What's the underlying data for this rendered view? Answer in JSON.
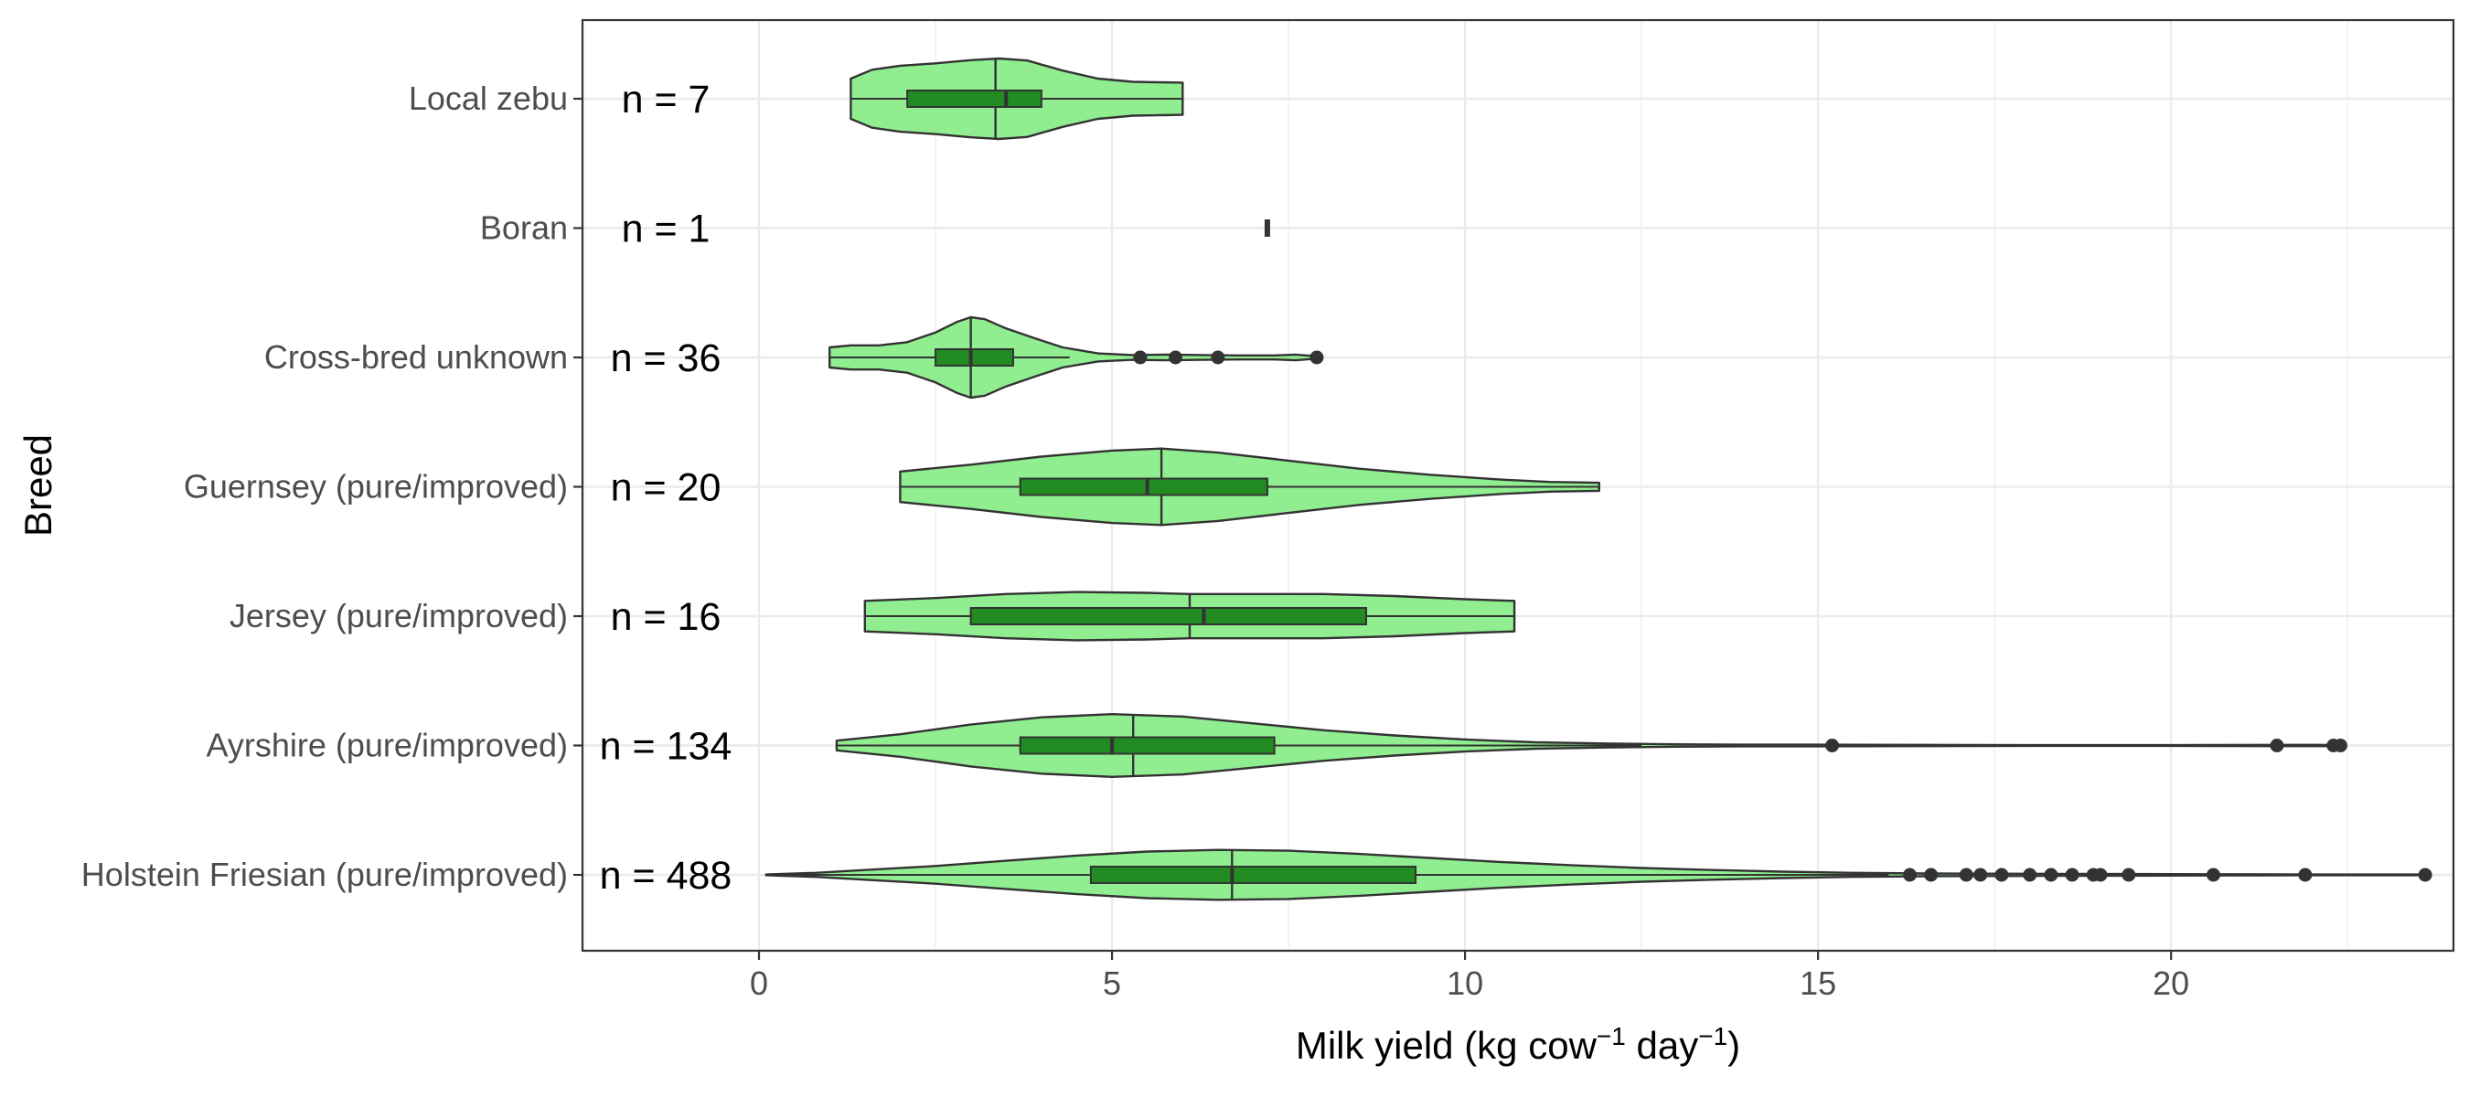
{
  "chart_data": {
    "type": "violin",
    "orientation": "horizontal",
    "xlabel_main": "Milk yield (kg cow",
    "xlabel_sup1": "−1",
    "xlabel_mid": " day",
    "xlabel_sup2": "−1",
    "xlabel_end": ")",
    "ylabel": "Breed",
    "xlim": [
      -2.5,
      24.0
    ],
    "xticks": [
      0,
      5,
      10,
      15,
      20
    ],
    "xtick_labels": [
      "0",
      "5",
      "10",
      "15",
      "20"
    ],
    "grid": true,
    "colors": {
      "violin_fill": "#90ee90",
      "box_fill": "#228b22",
      "stroke": "#333333",
      "grid": "#ebebeb",
      "panel_border": "#333333"
    },
    "categories": [
      "Local zebu",
      "Boran",
      "Cross-bred unknown",
      "Guernsey (pure/improved)",
      "Jersey (pure/improved)",
      "Ayrshire (pure/improved)",
      "Holstein Friesian (pure/improved)"
    ],
    "n_labels": [
      "n = 7",
      "n = 1",
      "n = 36",
      "n = 20",
      "n = 16",
      "n = 134",
      "n = 488"
    ],
    "series": [
      {
        "breed": "Local zebu",
        "n": 7,
        "violin_min": 1.3,
        "violin_max": 6.0,
        "violin_median": 3.35,
        "density": [
          [
            1.3,
            0.5
          ],
          [
            1.6,
            0.72
          ],
          [
            2.0,
            0.82
          ],
          [
            2.5,
            0.88
          ],
          [
            3.0,
            0.96
          ],
          [
            3.4,
            1.0
          ],
          [
            3.8,
            0.95
          ],
          [
            4.3,
            0.7
          ],
          [
            4.8,
            0.5
          ],
          [
            5.3,
            0.42
          ],
          [
            6.0,
            0.4
          ]
        ],
        "q1": 2.1,
        "median": 3.5,
        "q3": 4.0,
        "whisker_low": 1.3,
        "whisker_high": 6.0,
        "outliers": []
      },
      {
        "breed": "Boran",
        "n": 1,
        "violin_min": 7.2,
        "violin_max": 7.2,
        "violin_median": 7.2,
        "density": [],
        "q1": 7.2,
        "median": 7.2,
        "q3": 7.2,
        "whisker_low": 7.2,
        "whisker_high": 7.2,
        "outliers": []
      },
      {
        "breed": "Cross-bred unknown",
        "n": 36,
        "violin_min": 1.0,
        "violin_max": 7.9,
        "violin_median": 3.0,
        "density": [
          [
            1.0,
            0.25
          ],
          [
            1.3,
            0.3
          ],
          [
            1.7,
            0.3
          ],
          [
            2.1,
            0.38
          ],
          [
            2.5,
            0.62
          ],
          [
            2.8,
            0.88
          ],
          [
            3.0,
            1.0
          ],
          [
            3.2,
            0.95
          ],
          [
            3.5,
            0.72
          ],
          [
            3.9,
            0.48
          ],
          [
            4.3,
            0.25
          ],
          [
            4.8,
            0.1
          ],
          [
            5.3,
            0.06
          ],
          [
            5.8,
            0.07
          ],
          [
            6.3,
            0.06
          ],
          [
            6.8,
            0.05
          ],
          [
            7.3,
            0.05
          ],
          [
            7.6,
            0.07
          ],
          [
            7.9,
            0.03
          ]
        ],
        "q1": 2.5,
        "median": 3.0,
        "q3": 3.6,
        "whisker_low": 1.0,
        "whisker_high": 4.4,
        "outliers": [
          5.4,
          5.9,
          6.5,
          7.9
        ]
      },
      {
        "breed": "Guernsey (pure/improved)",
        "n": 20,
        "violin_min": 2.0,
        "violin_max": 11.9,
        "violin_median": 5.7,
        "density": [
          [
            2.0,
            0.38
          ],
          [
            3.0,
            0.55
          ],
          [
            4.0,
            0.75
          ],
          [
            5.0,
            0.9
          ],
          [
            5.7,
            0.95
          ],
          [
            6.5,
            0.85
          ],
          [
            7.5,
            0.65
          ],
          [
            8.5,
            0.45
          ],
          [
            9.5,
            0.3
          ],
          [
            10.5,
            0.18
          ],
          [
            11.2,
            0.12
          ],
          [
            11.9,
            0.1
          ]
        ],
        "q1": 3.7,
        "median": 5.5,
        "q3": 7.2,
        "whisker_low": 2.0,
        "whisker_high": 11.9,
        "outliers": []
      },
      {
        "breed": "Jersey (pure/improved)",
        "n": 16,
        "violin_min": 1.5,
        "violin_max": 10.7,
        "violin_median": 6.1,
        "density": [
          [
            1.5,
            0.38
          ],
          [
            2.5,
            0.45
          ],
          [
            3.5,
            0.55
          ],
          [
            4.5,
            0.6
          ],
          [
            5.5,
            0.58
          ],
          [
            6.1,
            0.55
          ],
          [
            7.0,
            0.55
          ],
          [
            8.0,
            0.55
          ],
          [
            9.0,
            0.5
          ],
          [
            10.0,
            0.42
          ],
          [
            10.7,
            0.38
          ]
        ],
        "q1": 3.0,
        "median": 6.3,
        "q3": 8.6,
        "whisker_low": 1.5,
        "whisker_high": 10.7,
        "outliers": []
      },
      {
        "breed": "Ayrshire (pure/improved)",
        "n": 134,
        "violin_min": 1.1,
        "violin_max": 22.4,
        "violin_median": 5.3,
        "density": [
          [
            1.1,
            0.12
          ],
          [
            2.0,
            0.28
          ],
          [
            3.0,
            0.52
          ],
          [
            4.0,
            0.7
          ],
          [
            5.0,
            0.78
          ],
          [
            6.0,
            0.72
          ],
          [
            7.0,
            0.55
          ],
          [
            8.0,
            0.38
          ],
          [
            9.0,
            0.25
          ],
          [
            10.0,
            0.15
          ],
          [
            11.0,
            0.08
          ],
          [
            12.0,
            0.05
          ],
          [
            13.0,
            0.03
          ],
          [
            14.0,
            0.02
          ],
          [
            15.0,
            0.02
          ],
          [
            16.5,
            0.015
          ],
          [
            18.0,
            0.01
          ],
          [
            20.0,
            0.01
          ],
          [
            21.5,
            0.015
          ],
          [
            22.4,
            0.015
          ]
        ],
        "q1": 3.7,
        "median": 5.0,
        "q3": 7.3,
        "whisker_low": 1.1,
        "whisker_high": 12.5,
        "outliers": [
          15.2,
          21.5,
          22.3,
          22.4
        ]
      },
      {
        "breed": "Holstein Friesian (pure/improved)",
        "n": 488,
        "violin_min": 0.1,
        "violin_max": 23.6,
        "violin_median": 6.7,
        "density": [
          [
            0.1,
            0.01
          ],
          [
            0.8,
            0.05
          ],
          [
            1.5,
            0.12
          ],
          [
            2.5,
            0.22
          ],
          [
            3.5,
            0.35
          ],
          [
            4.5,
            0.48
          ],
          [
            5.5,
            0.58
          ],
          [
            6.5,
            0.62
          ],
          [
            7.5,
            0.6
          ],
          [
            8.5,
            0.52
          ],
          [
            9.5,
            0.42
          ],
          [
            10.5,
            0.32
          ],
          [
            11.5,
            0.24
          ],
          [
            12.5,
            0.17
          ],
          [
            13.5,
            0.12
          ],
          [
            14.5,
            0.08
          ],
          [
            15.5,
            0.05
          ],
          [
            16.5,
            0.035
          ],
          [
            17.5,
            0.03
          ],
          [
            18.5,
            0.025
          ],
          [
            19.5,
            0.02
          ],
          [
            20.5,
            0.015
          ],
          [
            21.5,
            0.012
          ],
          [
            22.5,
            0.01
          ],
          [
            23.6,
            0.01
          ]
        ],
        "q1": 4.7,
        "median": 6.7,
        "q3": 9.3,
        "whisker_low": 0.1,
        "whisker_high": 16.0,
        "outliers": [
          16.3,
          16.6,
          17.1,
          17.3,
          17.6,
          18.0,
          18.3,
          18.6,
          18.9,
          19.0,
          19.4,
          20.6,
          21.9,
          23.6
        ]
      }
    ]
  }
}
